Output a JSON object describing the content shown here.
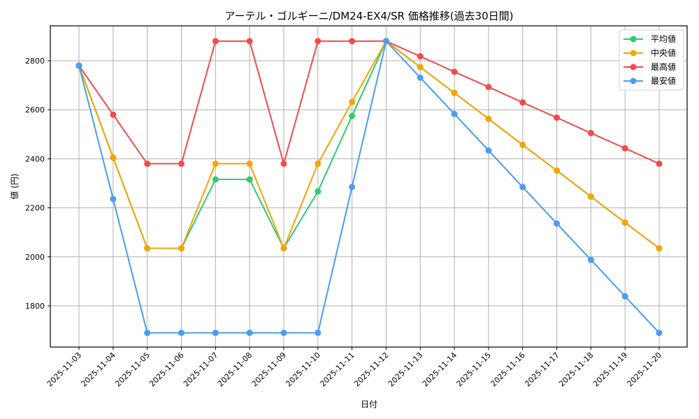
{
  "chart_data": {
    "type": "line",
    "title": "アーテル・ゴルギーニ/DM24-EX4/SR 価格推移(過去30日間)",
    "xlabel": "日付",
    "ylabel": "値 (円)",
    "ylim": [
      1635,
      2935
    ],
    "yticks": [
      1800,
      2000,
      2200,
      2400,
      2600,
      2800
    ],
    "grid": true,
    "legend_position": "upper right",
    "categories": [
      "2025-11-03",
      "2025-11-04",
      "2025-11-05",
      "2025-11-06",
      "2025-11-07",
      "2025-11-08",
      "2025-11-09",
      "2025-11-10",
      "2025-11-11",
      "2025-11-12",
      "2025-11-13",
      "2025-11-14",
      "2025-11-15",
      "2025-11-16",
      "2025-11-17",
      "2025-11-18",
      "2025-11-19",
      "2025-11-20"
    ],
    "series": [
      {
        "name": "平均値",
        "color": "#2ecc71",
        "values": [
          2780,
          2405,
          2035,
          2035,
          2316,
          2316,
          2035,
          2267,
          2575,
          2880,
          2774,
          2669,
          2563,
          2457,
          2352,
          2246,
          2140,
          2035
        ]
      },
      {
        "name": "中央値",
        "color": "#f5a500",
        "values": [
          2780,
          2405,
          2035,
          2035,
          2380,
          2380,
          2035,
          2380,
          2632,
          2880,
          2774,
          2669,
          2563,
          2457,
          2352,
          2246,
          2140,
          2035
        ]
      },
      {
        "name": "最高値",
        "color": "#f44b4b",
        "values": [
          2780,
          2580,
          2380,
          2380,
          2880,
          2880,
          2380,
          2880,
          2880,
          2880,
          2818,
          2755,
          2693,
          2630,
          2568,
          2505,
          2443,
          2380
        ]
      },
      {
        "name": "最安値",
        "color": "#4a9cf5",
        "values": [
          2780,
          2236,
          1690,
          1690,
          1690,
          1690,
          1690,
          1690,
          2285,
          2880,
          2731,
          2583,
          2434,
          2285,
          2136,
          1988,
          1839,
          1690
        ]
      }
    ]
  }
}
